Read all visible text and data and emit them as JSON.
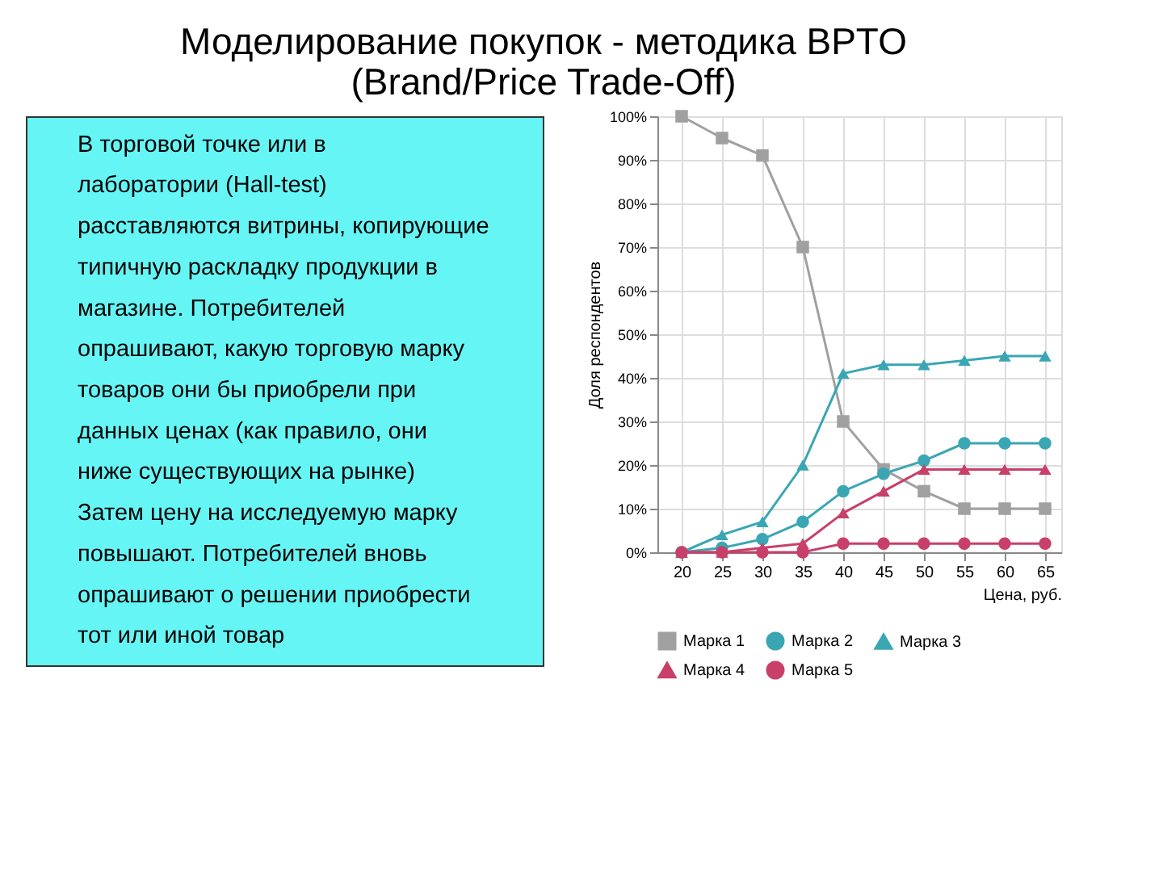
{
  "chart_data": {
    "type": "line",
    "title": [
      "Моделирование покупок - методика BPTO",
      "(Brand/Price Trade-Off)"
    ],
    "annotations": [
      "В торговой точке или в лаборатории (Hall-test) расставляются витрины, копирующие типичную раскладку продукции в магазине. Потребителей опрашивают, какую торговую марку товаров они бы приобрели при данных ценах (как правило, они ниже существующих на рынке)",
      "Затем цену на исследуемую марку повышают. Потребителей вновь опрашивают о решении приобрести тот или иной товар"
    ],
    "xlabel": "Цена, руб.",
    "ylabel": "Доля респондентов",
    "x": [
      20,
      25,
      30,
      35,
      40,
      45,
      50,
      55,
      60,
      65
    ],
    "series": [
      {
        "name": "Марка 1",
        "color": "#a0a0a0",
        "marker": "square",
        "values": [
          100,
          95,
          91,
          70,
          30,
          19,
          14,
          10,
          10,
          10
        ]
      },
      {
        "name": "Марка 2",
        "color": "#3aa6b4",
        "marker": "circle",
        "values": [
          0,
          1,
          3,
          7,
          14,
          18,
          21,
          25,
          25,
          25
        ]
      },
      {
        "name": "Марка 3",
        "color": "#3aa6b4",
        "marker": "triangle",
        "values": [
          0,
          4,
          7,
          20,
          41,
          43,
          43,
          44,
          45,
          45
        ]
      },
      {
        "name": "Марка 4",
        "color": "#c8406a",
        "marker": "triangle",
        "values": [
          0,
          0,
          1,
          2,
          9,
          14,
          19,
          19,
          19,
          19
        ]
      },
      {
        "name": "Марка 5",
        "color": "#c8406a",
        "marker": "circle",
        "values": [
          0,
          0,
          0,
          0,
          2,
          2,
          2,
          2,
          2,
          2
        ]
      }
    ],
    "xlim": [
      17,
      67
    ],
    "xticks": [
      20,
      25,
      30,
      35,
      40,
      45,
      50,
      55,
      60,
      65
    ],
    "ylim": [
      0,
      100
    ],
    "yticks": [
      {
        "value": 0,
        "label": "0%"
      },
      {
        "value": 10,
        "label": "10%"
      },
      {
        "value": 20,
        "label": "20%"
      },
      {
        "value": 30,
        "label": "30%"
      },
      {
        "value": 40,
        "label": "40%"
      },
      {
        "value": 50,
        "label": "50%"
      },
      {
        "value": 60,
        "label": "60%"
      },
      {
        "value": 70,
        "label": "70%"
      },
      {
        "value": 80,
        "label": "80%"
      },
      {
        "value": 90,
        "label": "90%"
      },
      {
        "value": 100,
        "label": "100%"
      }
    ],
    "grid": true,
    "legend": "bottom",
    "line_style": "solid"
  }
}
